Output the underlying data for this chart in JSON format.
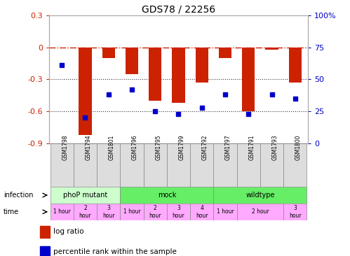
{
  "title": "GDS78 / 22256",
  "samples": [
    "GSM1798",
    "GSM1794",
    "GSM1801",
    "GSM1796",
    "GSM1795",
    "GSM1799",
    "GSM1792",
    "GSM1797",
    "GSM1791",
    "GSM1793",
    "GSM1800"
  ],
  "log_ratio": [
    0.0,
    -0.82,
    -0.1,
    -0.25,
    -0.5,
    -0.52,
    -0.33,
    -0.1,
    -0.6,
    -0.02,
    -0.33
  ],
  "percentile": [
    61,
    20,
    38,
    42,
    25,
    23,
    28,
    38,
    23,
    38,
    35
  ],
  "ylim_left": [
    -0.9,
    0.3
  ],
  "ylim_right": [
    0,
    100
  ],
  "bar_color": "#cc2200",
  "dot_color": "#0000cc",
  "ref_line_color": "#cc2200",
  "dotted_line_color": "#333333",
  "background": "#ffffff",
  "inf_groups": [
    {
      "label": "phoP mutant",
      "s": 0,
      "e": 2,
      "color": "#ccffcc"
    },
    {
      "label": "mock",
      "s": 3,
      "e": 6,
      "color": "#66ee66"
    },
    {
      "label": "wildtype",
      "s": 7,
      "e": 10,
      "color": "#66ee66"
    }
  ],
  "time_data": [
    {
      "s": 0,
      "e": 0,
      "label": "1 hour"
    },
    {
      "s": 1,
      "e": 1,
      "label": "2\nhour"
    },
    {
      "s": 2,
      "e": 2,
      "label": "3\nhour"
    },
    {
      "s": 3,
      "e": 3,
      "label": "1 hour"
    },
    {
      "s": 4,
      "e": 4,
      "label": "2\nhour"
    },
    {
      "s": 5,
      "e": 5,
      "label": "3\nhour"
    },
    {
      "s": 6,
      "e": 6,
      "label": "4\nhour"
    },
    {
      "s": 7,
      "e": 7,
      "label": "1 hour"
    },
    {
      "s": 8,
      "e": 9,
      "label": "2 hour"
    },
    {
      "s": 10,
      "e": 10,
      "label": "3\nhour"
    }
  ]
}
